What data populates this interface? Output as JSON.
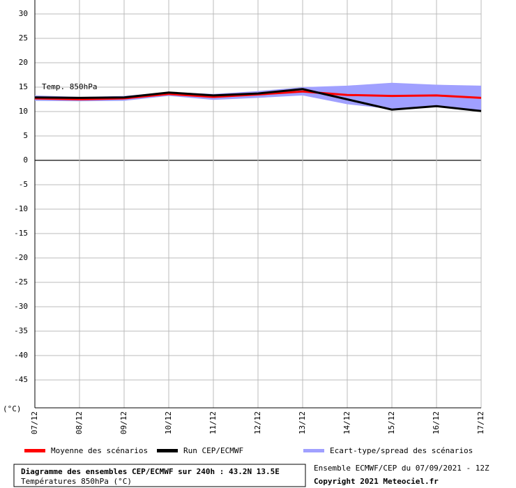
{
  "chart_data": {
    "type": "line",
    "annotation": "Temp. 850hPa",
    "y_label": "(°C)",
    "title": "Diagramme des ensembles CEP/ECMWF sur 240h : 43.2N 13.5E",
    "subtitle": "Températures 850hPa (°C)",
    "info": "Ensemble ECMWF/CEP du 07/09/2021 - 12Z",
    "copyright": "Copyright 2021 Meteociel.fr",
    "categories": [
      "07/12",
      "08/12",
      "09/12",
      "10/12",
      "11/12",
      "12/12",
      "13/12",
      "14/12",
      "15/12",
      "16/12",
      "17/12"
    ],
    "ylim": [
      -50,
      30
    ],
    "yticks": [
      30,
      25,
      20,
      15,
      10,
      5,
      0,
      -5,
      -10,
      -15,
      -20,
      -25,
      -30,
      -35,
      -40,
      -45
    ],
    "grid": true,
    "spread": {
      "name": "Ecart-type/spread des scénarios",
      "color": "#a0a0ff",
      "high": [
        13.3,
        13.0,
        13.2,
        14.0,
        13.6,
        14.2,
        15.0,
        15.3,
        15.9,
        15.5,
        15.3
      ],
      "low": [
        12.2,
        12.1,
        12.2,
        13.2,
        12.4,
        12.8,
        13.3,
        11.5,
        10.5,
        11.0,
        10.3
      ]
    },
    "series": [
      {
        "name": "Moyenne des scénarios",
        "color": "#ff0000",
        "values": [
          12.7,
          12.5,
          12.7,
          13.6,
          13.0,
          13.5,
          14.1,
          13.4,
          13.2,
          13.3,
          12.8
        ]
      },
      {
        "name": "Run CEP/ECMWF",
        "color": "#000000",
        "values": [
          12.9,
          12.8,
          12.9,
          13.9,
          13.3,
          13.7,
          14.6,
          12.5,
          10.4,
          11.1,
          10.1
        ]
      }
    ]
  }
}
